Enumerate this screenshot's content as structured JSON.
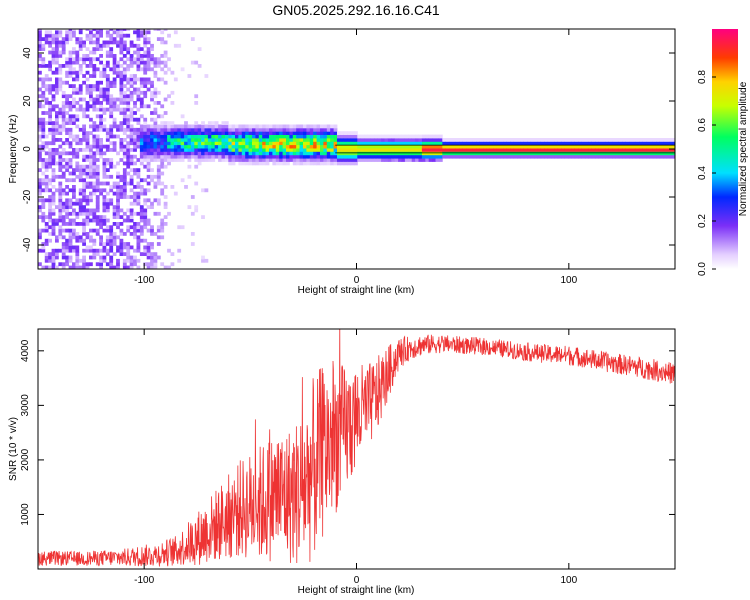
{
  "title": "GN05.2025.292.16.16.C41",
  "chart_data": [
    {
      "type": "heatmap",
      "xlabel": "Height of straight line (km)",
      "ylabel": "Frequency (Hz)",
      "xlim": [
        -150,
        150
      ],
      "ylim": [
        -50,
        50
      ],
      "xticks": [
        -100,
        0,
        100
      ],
      "xtick_labels": [
        "-100",
        "0",
        "100"
      ],
      "yticks": [
        -40,
        -20,
        0,
        20,
        40
      ],
      "ytick_labels": [
        "-40",
        "-20",
        "0",
        "20",
        "40"
      ],
      "colorbar": {
        "label": "Normalized spectral amplitude",
        "range": [
          0.0,
          1.0
        ],
        "ticks": [
          0.0,
          0.2,
          0.4,
          0.6,
          0.8
        ],
        "tick_labels": [
          "0.0",
          "0.2",
          "0.4",
          "0.6",
          "0.8"
        ]
      },
      "features": [
        {
          "name": "noise",
          "x_range": [
            -150,
            -85
          ],
          "freq_range": [
            -50,
            50
          ],
          "amplitude": 0.15
        },
        {
          "name": "signal-band-noisy",
          "x_range": [
            -100,
            -10
          ],
          "center_freq": 1.5,
          "width_hz": 6,
          "peak_amplitude": 0.8
        },
        {
          "name": "signal-line",
          "x_range": [
            -8,
            150
          ],
          "center_freq": 0,
          "width_hz": 2,
          "peak_amplitude": 0.95
        }
      ]
    },
    {
      "type": "line",
      "xlabel": "Height of straight line (km)",
      "ylabel": "SNR (10 * v/v)",
      "xlim": [
        -150,
        150
      ],
      "ylim": [
        0,
        4400
      ],
      "xticks": [
        -100,
        0,
        100
      ],
      "xtick_labels": [
        "-100",
        "0",
        "100"
      ],
      "yticks": [
        1000,
        2000,
        3000,
        4000
      ],
      "ytick_labels": [
        "1000",
        "2000",
        "3000",
        "4000"
      ],
      "series": [
        {
          "name": "SNR",
          "color": "#ee3333",
          "x": [
            -150,
            -130,
            -110,
            -95,
            -85,
            -75,
            -65,
            -55,
            -45,
            -38,
            -30,
            -25,
            -20,
            -15,
            -10,
            -5,
            0,
            5,
            10,
            15,
            20,
            25,
            30,
            35,
            40,
            50,
            60,
            70,
            80,
            90,
            100,
            110,
            120,
            130,
            140,
            150
          ],
          "y": [
            200,
            190,
            210,
            260,
            330,
            560,
            830,
            1100,
            1200,
            1350,
            1350,
            1500,
            1850,
            2200,
            2400,
            2550,
            2800,
            2950,
            3200,
            3600,
            3950,
            4050,
            4100,
            4120,
            4130,
            4100,
            4080,
            4030,
            3980,
            3940,
            3920,
            3850,
            3780,
            3720,
            3650,
            3580
          ],
          "noise_amplitude": [
            140,
            130,
            160,
            220,
            280,
            500,
            700,
            900,
            1100,
            1200,
            1300,
            1500,
            1700,
            1600,
            1400,
            1200,
            1000,
            800,
            700,
            500,
            300,
            220,
            200,
            180,
            170,
            160,
            160,
            160,
            170,
            170,
            180,
            180,
            190,
            190,
            200,
            200
          ]
        }
      ]
    }
  ]
}
